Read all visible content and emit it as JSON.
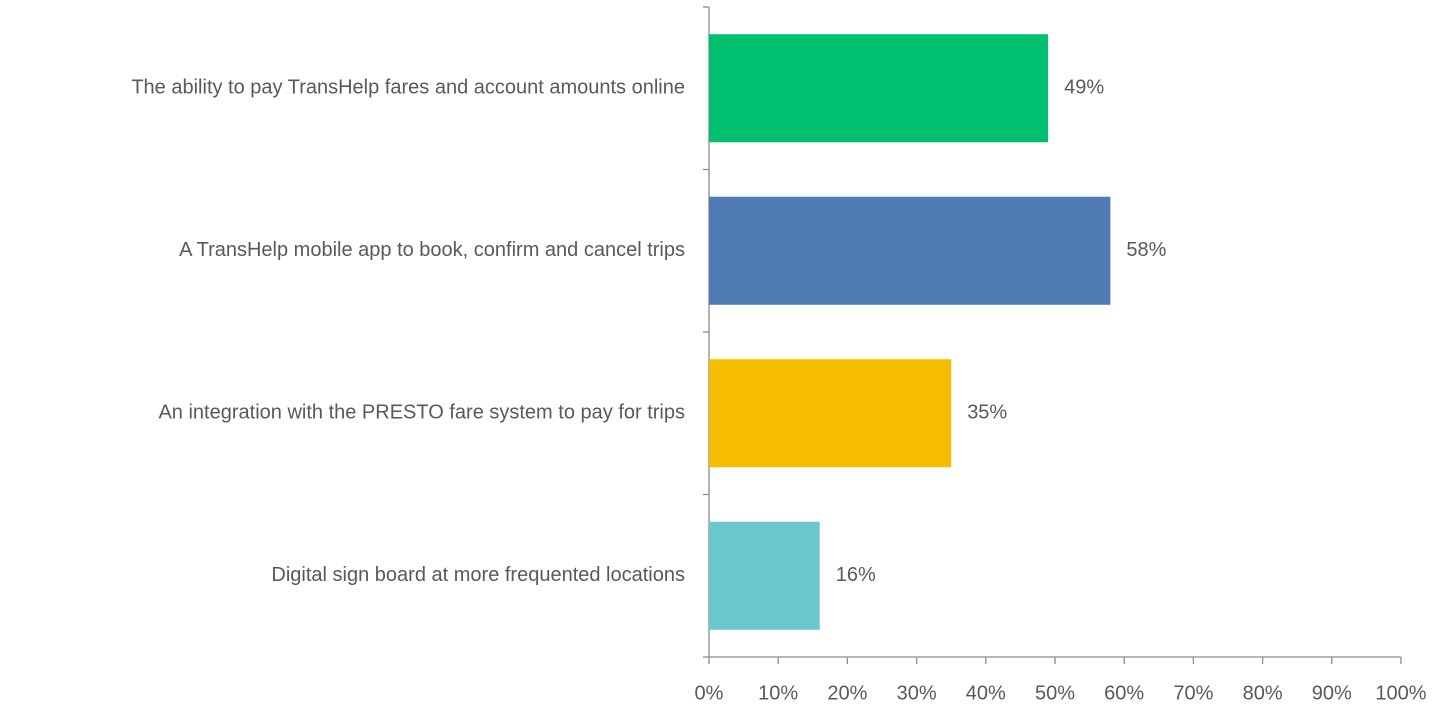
{
  "chart_data": {
    "type": "bar",
    "orientation": "horizontal",
    "categories": [
      "The ability to pay TransHelp fares and account amounts online",
      "A TransHelp mobile app to book, confirm and cancel trips",
      "An integration with the PRESTO fare system to pay for trips",
      "Digital sign board at more frequented locations"
    ],
    "values": [
      49,
      58,
      35,
      16
    ],
    "value_labels": [
      "49%",
      "58%",
      "35%",
      "16%"
    ],
    "colors": [
      "#00bf6f",
      "#507cb6",
      "#f6bc00",
      "#6bc8cd"
    ],
    "xlim": [
      0,
      100
    ],
    "xticks": [
      {
        "value": 0,
        "label": "0%"
      },
      {
        "value": 10,
        "label": "10%"
      },
      {
        "value": 20,
        "label": "20%"
      },
      {
        "value": 30,
        "label": "30%"
      },
      {
        "value": 40,
        "label": "40%"
      },
      {
        "value": 50,
        "label": "50%"
      },
      {
        "value": 60,
        "label": "60%"
      },
      {
        "value": 70,
        "label": "70%"
      },
      {
        "value": 80,
        "label": "80%"
      },
      {
        "value": 90,
        "label": "90%"
      },
      {
        "value": 100,
        "label": "100%"
      }
    ],
    "grid": false
  }
}
